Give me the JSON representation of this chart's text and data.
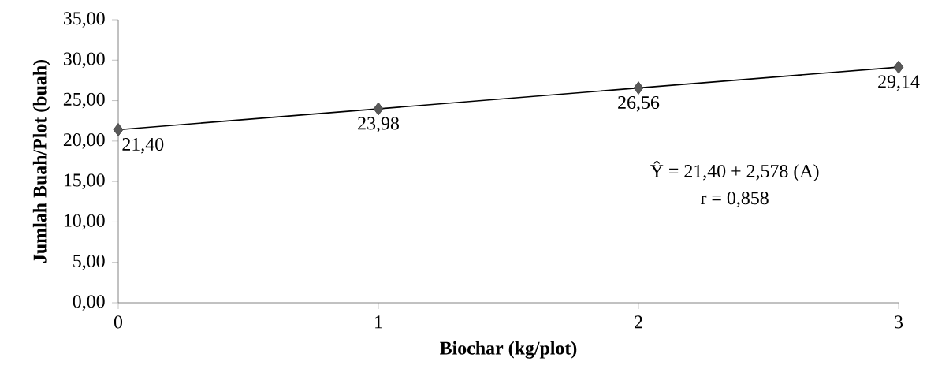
{
  "chart_data": {
    "type": "line",
    "xlabel": "Biochar (kg/plot)",
    "ylabel": "Jumlah Buah/Plot (buah)",
    "xlim": [
      0,
      3
    ],
    "xticks": [
      0,
      1,
      2,
      3
    ],
    "ylim": [
      0,
      35
    ],
    "yticks": [
      {
        "value": 0,
        "label": "0,00"
      },
      {
        "value": 5,
        "label": "5,00"
      },
      {
        "value": 10,
        "label": "10,00"
      },
      {
        "value": 15,
        "label": "15,00"
      },
      {
        "value": 20,
        "label": "20,00"
      },
      {
        "value": 25,
        "label": "25,00"
      },
      {
        "value": 30,
        "label": "30,00"
      },
      {
        "value": 35,
        "label": "35,00"
      }
    ],
    "grid": false,
    "series": [
      {
        "type": "scatter",
        "marker": "diamond",
        "color": "#595959",
        "x": [
          0,
          1,
          2,
          3
        ],
        "values": [
          21.4,
          23.98,
          26.56,
          29.14
        ],
        "value_labels": [
          "21,40",
          "23,98",
          "26,56",
          "29,14"
        ]
      },
      {
        "marker": "none",
        "line_style": "solid",
        "color": "#000000",
        "x": [
          0,
          3
        ],
        "values": [
          21.4,
          29.14
        ]
      }
    ],
    "annotations": [
      "Ŷ = 21,40 + 2,578 (A)",
      "r = 0,858"
    ]
  }
}
